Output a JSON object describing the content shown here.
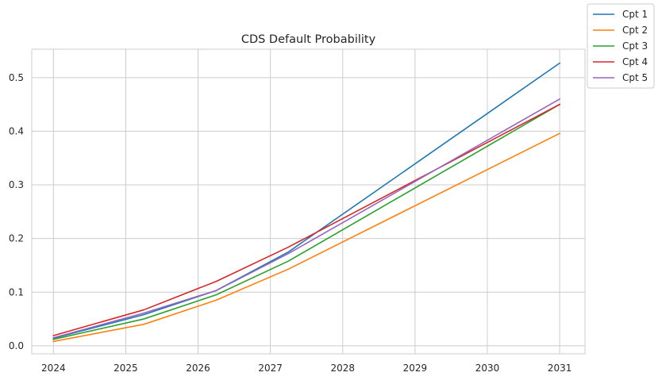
{
  "chart_data": {
    "type": "line",
    "title": "CDS Default Probability",
    "xlabel": "",
    "ylabel": "",
    "xlim": [
      2023.7,
      2031.35
    ],
    "ylim": [
      -0.015,
      0.553
    ],
    "x_ticks": [
      "2024",
      "2025",
      "2026",
      "2027",
      "2028",
      "2029",
      "2030",
      "2031"
    ],
    "x_tick_values": [
      2024,
      2025,
      2026,
      2027,
      2028,
      2029,
      2030,
      2031
    ],
    "y_ticks": [
      "0.0",
      "0.1",
      "0.2",
      "0.3",
      "0.4",
      "0.5"
    ],
    "y_tick_values": [
      0.0,
      0.1,
      0.2,
      0.3,
      0.4,
      0.5
    ],
    "grid": true,
    "legend_placement": "outside-top-right",
    "x": [
      2024,
      2025.25,
      2026.25,
      2027.25,
      2031
    ],
    "series": [
      {
        "name": "Cpt 1",
        "color": "#1f77b4",
        "values": [
          0.014,
          0.058,
          0.103,
          0.175,
          0.527
        ]
      },
      {
        "name": "Cpt 2",
        "color": "#ff7f0e",
        "values": [
          0.008,
          0.04,
          0.085,
          0.143,
          0.396
        ]
      },
      {
        "name": "Cpt 3",
        "color": "#2ca02c",
        "values": [
          0.012,
          0.05,
          0.095,
          0.158,
          0.45
        ]
      },
      {
        "name": "Cpt 4",
        "color": "#d62728",
        "values": [
          0.019,
          0.067,
          0.12,
          0.184,
          0.45
        ]
      },
      {
        "name": "Cpt 5",
        "color": "#9467bd",
        "values": [
          0.015,
          0.061,
          0.103,
          0.172,
          0.46
        ]
      }
    ]
  }
}
